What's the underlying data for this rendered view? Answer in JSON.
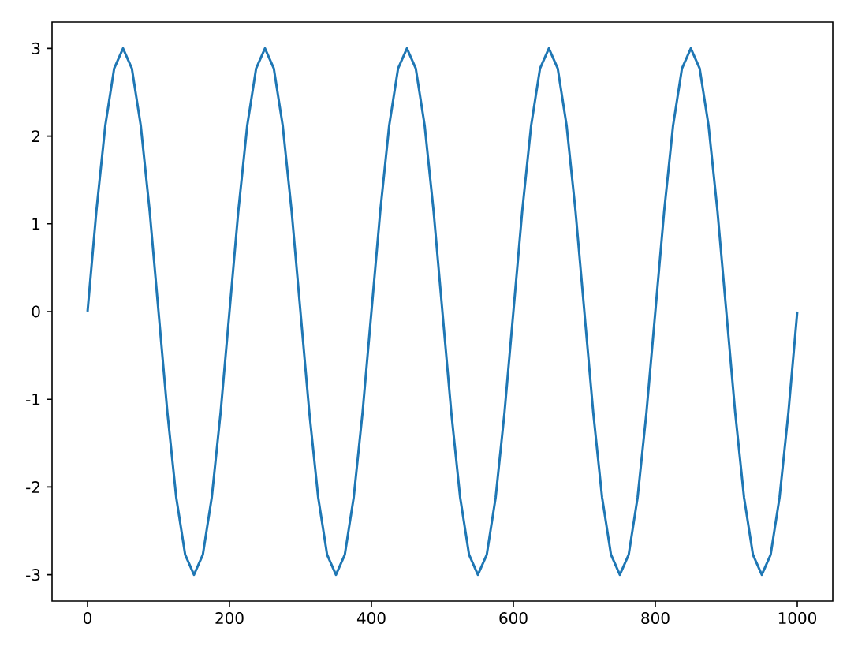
{
  "chart_data": {
    "type": "line",
    "x": [
      0,
      12.5,
      25,
      37.5,
      50,
      62.5,
      75,
      87.5,
      100,
      112.5,
      125,
      137.5,
      150,
      162.5,
      175,
      187.5,
      200,
      212.5,
      225,
      237.5,
      250,
      262.5,
      275,
      287.5,
      300,
      312.5,
      325,
      337.5,
      350,
      362.5,
      375,
      387.5,
      400,
      412.5,
      425,
      437.5,
      450,
      462.5,
      475,
      487.5,
      500,
      512.5,
      525,
      537.5,
      550,
      562.5,
      575,
      587.5,
      600,
      612.5,
      625,
      637.5,
      650,
      662.5,
      675,
      687.5,
      700,
      712.5,
      725,
      737.5,
      750,
      762.5,
      775,
      787.5,
      800,
      812.5,
      825,
      837.5,
      850,
      862.5,
      875,
      887.5,
      900,
      912.5,
      925,
      937.5,
      950,
      962.5,
      975,
      987.5,
      1000
    ],
    "series": [
      {
        "color": "#1f77b4",
        "values": [
          0,
          1.15,
          2.12,
          2.77,
          3,
          2.77,
          2.12,
          1.15,
          0,
          -1.15,
          -2.12,
          -2.77,
          -3,
          -2.77,
          -2.12,
          -1.15,
          0,
          1.15,
          2.12,
          2.77,
          3,
          2.77,
          2.12,
          1.15,
          0,
          -1.15,
          -2.12,
          -2.77,
          -3,
          -2.77,
          -2.12,
          -1.15,
          0,
          1.15,
          2.12,
          2.77,
          3,
          2.77,
          2.12,
          1.15,
          0,
          -1.15,
          -2.12,
          -2.77,
          -3,
          -2.77,
          -2.12,
          -1.15,
          0,
          1.15,
          2.12,
          2.77,
          3,
          2.77,
          2.12,
          1.15,
          0,
          -1.15,
          -2.12,
          -2.77,
          -3,
          -2.77,
          -2.12,
          -1.15,
          0,
          1.15,
          2.12,
          2.77,
          3,
          2.77,
          2.12,
          1.15,
          0,
          -1.15,
          -2.12,
          -2.77,
          -3,
          -2.77,
          -2.12,
          -1.15,
          0
        ]
      }
    ],
    "xlim": [
      -50,
      1050
    ],
    "ylim": [
      -3.3,
      3.3
    ],
    "xticks": [
      0,
      200,
      400,
      600,
      800,
      1000
    ],
    "yticks": [
      -3,
      -2,
      -1,
      0,
      1,
      2,
      3
    ]
  }
}
